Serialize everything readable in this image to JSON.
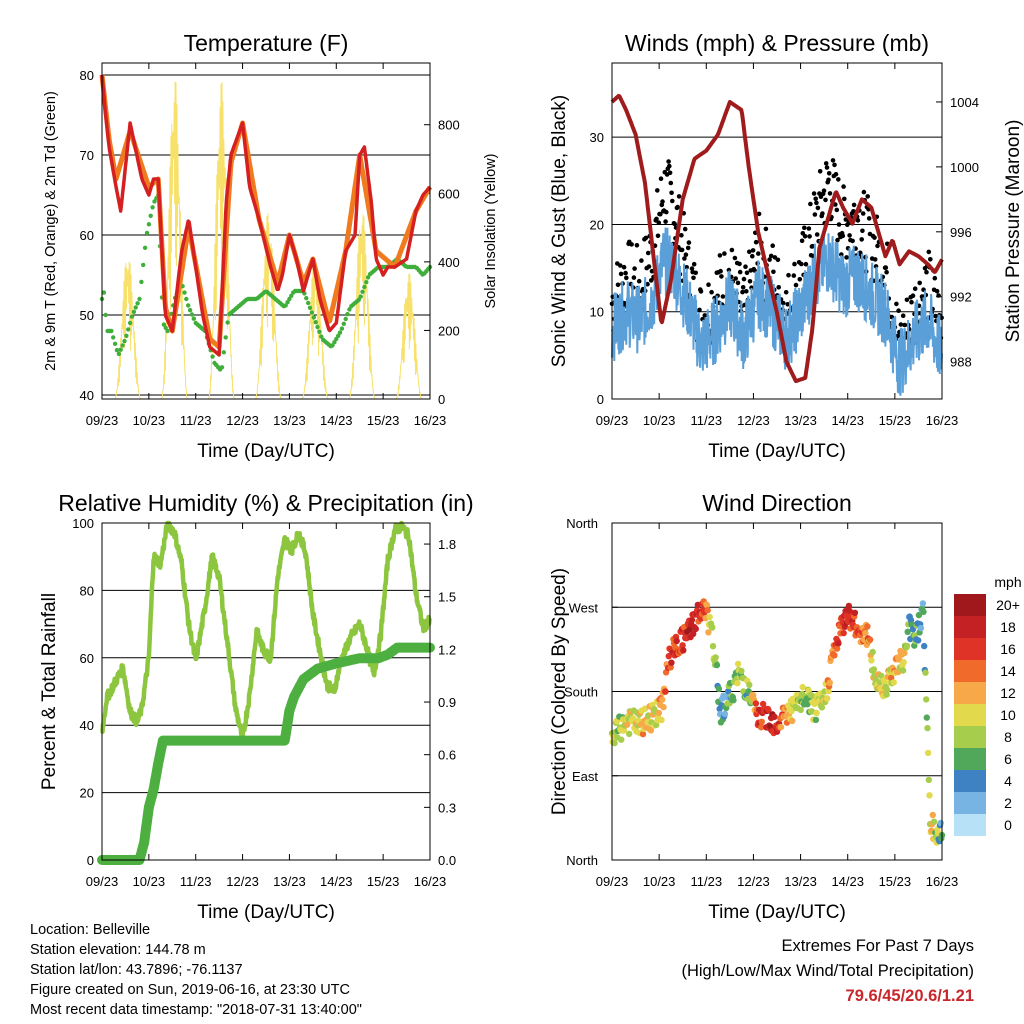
{
  "footer": {
    "location": "Location: Belleville",
    "elevation": "Station elevation: 144.78 m",
    "latlon": "Station lat/lon: 43.7896; -76.1137",
    "created": "Figure created on Sun, 2019-06-16, at 23:30 UTC",
    "recent": "Most recent data timestamp: \"2018-07-31 13:40:00\""
  },
  "extremes": {
    "title": "Extremes For Past 7 Days",
    "subtitle": "(High/Low/Max Wind/Total Precipitation)",
    "values": "79.6/45/20.6/1.21",
    "values_color": "#c8282c"
  },
  "chart_data": [
    {
      "type": "line",
      "title": "Temperature (F)",
      "xlabel": "Time (Day/UTC)",
      "ylabel": "2m & 9m T (Red, Orange) & 2m Td (Green)",
      "y2label": "Solar Insolation (Yellow)",
      "x_ticks": [
        "09/23",
        "10/23",
        "11/23",
        "12/23",
        "13/23",
        "14/23",
        "15/23",
        "16/23"
      ],
      "ylim": [
        39.5,
        81.5
      ],
      "y_ticks": [
        40,
        50,
        60,
        70,
        80
      ],
      "y2lim": [
        0,
        980
      ],
      "y2_ticks": [
        0,
        200,
        400,
        600,
        800
      ],
      "grid": true,
      "series": [
        {
          "name": "2m T",
          "axis": "left",
          "color": "#d42020",
          "x": [
            0,
            0.06,
            0.15,
            0.3,
            0.4,
            0.6,
            0.85,
            1.0,
            1.1,
            1.2,
            1.35,
            1.5,
            1.7,
            1.85,
            2.0,
            2.15,
            2.3,
            2.5,
            2.65,
            2.75,
            3.0,
            3.15,
            3.35,
            3.6,
            3.75,
            3.85,
            4.0,
            4.15,
            4.3,
            4.5,
            4.65,
            4.75,
            4.85,
            5.0,
            5.2,
            5.4,
            5.5,
            5.6,
            5.75,
            5.85,
            6.0,
            6.1,
            6.25,
            6.5,
            6.7,
            6.85,
            7.0
          ],
          "y": [
            80,
            76,
            71,
            66,
            63,
            74,
            67,
            65,
            67,
            67,
            50,
            48,
            58,
            62,
            56,
            50,
            46,
            45,
            64,
            70,
            74,
            66,
            62,
            56,
            53,
            55,
            60,
            57,
            53,
            57,
            52,
            50,
            48,
            49,
            58,
            60,
            70,
            71,
            64,
            57,
            55,
            56,
            56,
            57,
            63,
            65,
            66
          ]
        },
        {
          "name": "9m T",
          "axis": "left",
          "color": "#f07a1e",
          "x": [
            0,
            0.15,
            0.3,
            0.6,
            1.0,
            1.2,
            1.35,
            1.5,
            1.85,
            2.3,
            2.5,
            2.75,
            3.0,
            3.35,
            3.75,
            4.0,
            4.3,
            4.5,
            4.85,
            5.2,
            5.5,
            5.85,
            6.25,
            6.7,
            7.0
          ],
          "y": [
            80,
            72,
            67,
            73,
            66,
            67,
            51,
            48,
            61,
            47,
            46,
            69,
            74,
            62,
            54,
            60,
            54,
            57,
            49,
            58,
            70,
            58,
            56,
            63,
            66
          ]
        },
        {
          "name": "2m Td",
          "axis": "left",
          "color": "#3fae3a",
          "x": [
            0,
            0.05,
            0.1,
            0.2,
            0.35,
            0.5,
            0.65,
            0.8,
            0.95,
            1.1,
            1.2,
            1.3,
            1.4,
            1.55,
            1.7,
            1.85,
            2.0,
            2.2,
            2.4,
            2.55,
            2.7,
            2.9,
            3.1,
            3.3,
            3.5,
            3.7,
            3.9,
            4.1,
            4.3,
            4.5,
            4.7,
            4.9,
            5.1,
            5.3,
            5.5,
            5.7,
            5.9,
            6.1,
            6.3,
            6.5,
            6.7,
            6.85,
            7.0
          ],
          "y": [
            52,
            53,
            48,
            48,
            45,
            47,
            50,
            52,
            60,
            64,
            65,
            49,
            48,
            52,
            54,
            51,
            49,
            48,
            44,
            43,
            50,
            51,
            52,
            52,
            53,
            52,
            51,
            53,
            53,
            50,
            47,
            46,
            48,
            51,
            52,
            55,
            56,
            56,
            57,
            56,
            56,
            55,
            56
          ]
        },
        {
          "name": "Solar Insolation",
          "axis": "right",
          "color": "#f7e16a",
          "peaks": [
            0.55,
            1.55,
            2.55,
            3.55,
            4.55,
            5.55,
            6.55
          ],
          "peak_values": [
            430,
            950,
            930,
            550,
            420,
            560,
            370
          ]
        }
      ]
    },
    {
      "type": "scatter",
      "title": "Winds (mph) & Pressure (mb)",
      "xlabel": "Time (Day/UTC)",
      "ylabel": "Sonic Wind & Gust (Blue, Black)",
      "y2label": "Station Pressure (Maroon)",
      "x_ticks": [
        "09/23",
        "10/23",
        "11/23",
        "12/23",
        "13/23",
        "14/23",
        "15/23",
        "16/23"
      ],
      "ylim": [
        0,
        38.5
      ],
      "y_ticks": [
        0,
        10,
        20,
        30
      ],
      "y2lim": [
        985.7,
        1006.4
      ],
      "y2_ticks": [
        988,
        992,
        996,
        1000,
        1004
      ],
      "grid": true,
      "series": [
        {
          "name": "Sonic Wind",
          "axis": "left",
          "color": "#5a9fd8",
          "x": [
            0,
            0.3,
            0.6,
            0.9,
            1.1,
            1.3,
            1.6,
            1.9,
            2.2,
            2.5,
            2.8,
            3.1,
            3.4,
            3.7,
            4.0,
            4.3,
            4.6,
            4.9,
            5.2,
            5.5,
            5.8,
            6.1,
            6.4,
            6.7,
            7.0
          ],
          "y": [
            8,
            10,
            9,
            12,
            16,
            15,
            11,
            6,
            8,
            11,
            7,
            12,
            10,
            7,
            10,
            14,
            16,
            13,
            14,
            12,
            10,
            4,
            7,
            9,
            5
          ]
        },
        {
          "name": "Gust",
          "axis": "left",
          "color": "#000000",
          "x": [
            0,
            0.3,
            0.6,
            0.9,
            1.1,
            1.3,
            1.6,
            1.9,
            2.2,
            2.5,
            2.8,
            3.1,
            3.4,
            3.7,
            4.0,
            4.3,
            4.6,
            4.9,
            5.2,
            5.5,
            5.8,
            6.1,
            6.4,
            6.7,
            7.0
          ],
          "y": [
            11,
            14,
            13,
            18,
            24,
            22,
            15,
            9,
            12,
            14,
            10,
            17,
            14,
            10,
            14,
            20,
            25,
            20,
            21,
            18,
            15,
            6,
            10,
            13,
            8
          ]
        },
        {
          "name": "Station Pressure",
          "axis": "right",
          "color": "#a01c1c",
          "x": [
            0,
            0.15,
            0.3,
            0.5,
            0.7,
            0.9,
            1.05,
            1.25,
            1.5,
            1.75,
            2.0,
            2.25,
            2.5,
            2.75,
            2.9,
            3.1,
            3.3,
            3.5,
            3.7,
            3.9,
            4.1,
            4.25,
            4.4,
            4.6,
            4.75,
            4.9,
            5.1,
            5.3,
            5.5,
            5.65,
            5.8,
            5.95,
            6.1,
            6.3,
            6.5,
            6.7,
            6.85,
            7.0
          ],
          "y": [
            1004,
            1004.4,
            1003.5,
            1002,
            999,
            994,
            990.3,
            993,
            998,
            1000.5,
            1001,
            1002,
            1004,
            1003.5,
            1000,
            996,
            993.5,
            991,
            988,
            986.8,
            987,
            990,
            995,
            997,
            998.5,
            997.5,
            996.5,
            998,
            997.5,
            996,
            994.5,
            995.5,
            994,
            994.8,
            994.5,
            994,
            993.5,
            994.3
          ]
        }
      ]
    },
    {
      "type": "line",
      "title": "Relative Humidity (%) & Precipitation (in)",
      "xlabel": "Time (Day/UTC)",
      "ylabel": "Percent & Total Rainfall",
      "x_ticks": [
        "09/23",
        "10/23",
        "11/23",
        "12/23",
        "13/23",
        "14/23",
        "15/23",
        "16/23"
      ],
      "ylim": [
        0,
        100
      ],
      "y_ticks": [
        0,
        20,
        40,
        60,
        80,
        100
      ],
      "y2lim": [
        0,
        1.92
      ],
      "y2_ticks": [
        "0.0",
        "0.3",
        "0.6",
        "0.9",
        "1.2",
        "1.5",
        "1.8"
      ],
      "grid": true,
      "series": [
        {
          "name": "Relative Humidity",
          "axis": "left",
          "color": "#8cc63f",
          "x": [
            0,
            0.1,
            0.25,
            0.45,
            0.6,
            0.75,
            0.85,
            1.0,
            1.1,
            1.25,
            1.4,
            1.55,
            1.7,
            1.85,
            2.0,
            2.2,
            2.35,
            2.5,
            2.7,
            2.85,
            3.0,
            3.15,
            3.3,
            3.45,
            3.6,
            3.75,
            3.9,
            4.05,
            4.2,
            4.35,
            4.5,
            4.65,
            4.8,
            4.95,
            5.1,
            5.3,
            5.5,
            5.65,
            5.8,
            5.95,
            6.1,
            6.25,
            6.4,
            6.55,
            6.7,
            6.85,
            7.0
          ],
          "y": [
            38,
            48,
            52,
            57,
            44,
            41,
            45,
            60,
            90,
            88,
            100,
            97,
            88,
            70,
            59,
            75,
            90,
            84,
            62,
            45,
            36,
            49,
            68,
            62,
            60,
            84,
            95,
            92,
            97,
            91,
            73,
            62,
            52,
            50,
            59,
            66,
            70,
            63,
            55,
            67,
            89,
            98,
            99,
            96,
            79,
            69,
            71
          ]
        },
        {
          "name": "Total Precipitation",
          "axis": "right",
          "color": "#4caf40",
          "x": [
            0,
            0.8,
            0.9,
            1.0,
            1.1,
            1.2,
            1.3,
            1.5,
            2.5,
            3.4,
            3.9,
            4.0,
            4.1,
            4.3,
            4.6,
            5.0,
            5.5,
            5.9,
            6.1,
            6.3,
            7.0
          ],
          "y": [
            0,
            0,
            0.1,
            0.3,
            0.4,
            0.55,
            0.68,
            0.68,
            0.68,
            0.68,
            0.68,
            0.85,
            0.93,
            1.03,
            1.09,
            1.12,
            1.15,
            1.15,
            1.17,
            1.21,
            1.21
          ]
        }
      ]
    },
    {
      "type": "scatter",
      "title": "Wind Direction",
      "xlabel": "Time (Day/UTC)",
      "ylabel": "Direction (Colored By Speed)",
      "x_ticks": [
        "09/23",
        "10/23",
        "11/23",
        "12/23",
        "13/23",
        "14/23",
        "15/23",
        "16/23"
      ],
      "y_ticks": [
        "North",
        "East",
        "South",
        "West",
        "North"
      ],
      "ylim": [
        0,
        360
      ],
      "grid": true,
      "colorbar": {
        "title": "mph",
        "labels": [
          "20+",
          "18",
          "16",
          "14",
          "12",
          "10",
          "8",
          "6",
          "4",
          "2",
          "0"
        ],
        "colors": [
          "#a1181c",
          "#c42125",
          "#e03327",
          "#ef6a2b",
          "#f7a848",
          "#e3d94c",
          "#a7cd4c",
          "#51a85a",
          "#3e82c3",
          "#78b4e3",
          "#b6e1f6"
        ]
      },
      "series": [
        {
          "name": "Direction",
          "x": [
            0,
            0.3,
            0.6,
            0.9,
            1.05,
            1.2,
            1.4,
            1.6,
            1.8,
            2.0,
            2.15,
            2.3,
            2.5,
            2.7,
            2.9,
            3.1,
            3.3,
            3.5,
            3.7,
            3.9,
            4.1,
            4.3,
            4.5,
            4.7,
            4.85,
            5.0,
            5.2,
            5.4,
            5.6,
            5.8,
            6.0,
            6.1,
            6.2,
            6.3,
            6.45,
            6.6,
            6.75,
            6.9,
            7.0
          ],
          "y": [
            130,
            148,
            145,
            155,
            160,
            215,
            230,
            240,
            262,
            265,
            230,
            160,
            175,
            200,
            178,
            150,
            155,
            145,
            158,
            162,
            175,
            160,
            168,
            222,
            245,
            265,
            246,
            243,
            190,
            188,
            205,
            210,
            215,
            250,
            238,
            270,
            40,
            26,
            32
          ],
          "speed": [
            8,
            9,
            11,
            10,
            12,
            15,
            16,
            17,
            18,
            14,
            8,
            4,
            6,
            9,
            7,
            16,
            18,
            17,
            12,
            9,
            7,
            8,
            10,
            14,
            16,
            18,
            15,
            14,
            9,
            10,
            12,
            10,
            9,
            5,
            7,
            3,
            10,
            8,
            4
          ]
        }
      ]
    }
  ]
}
